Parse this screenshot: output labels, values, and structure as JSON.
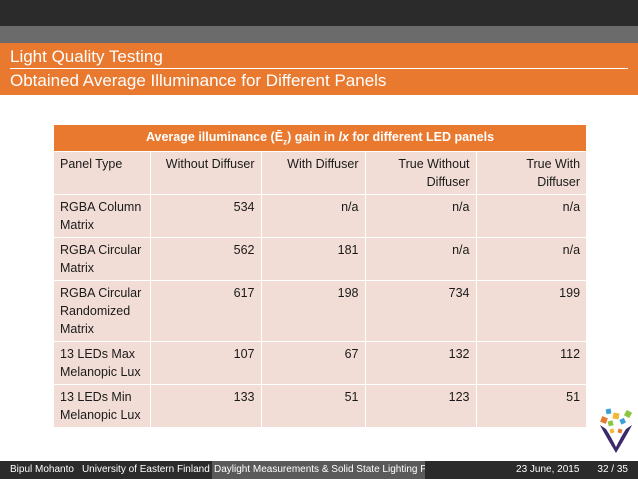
{
  "header": {
    "title": "Light Quality Testing",
    "subtitle": "Obtained Average Illuminance for Different Panels"
  },
  "table": {
    "caption": "Average illuminance (Ē",
    "caption_sub": "z",
    "caption_mid": ") gain in ",
    "caption_unit": "lx",
    "caption_end": " for different LED panels",
    "columns": [
      "Panel Type",
      "Without Diffuser",
      "With Diffuser",
      "True Without Diffuser",
      "True With Diffuser"
    ],
    "rows": [
      {
        "panel": "RGBA Column Matrix",
        "without_diffuser": "534",
        "with_diffuser": "n/a",
        "true_without_diffuser": "n/a",
        "true_with_diffuser": "n/a"
      },
      {
        "panel": "RGBA Circular Matrix",
        "without_diffuser": "562",
        "with_diffuser": "181",
        "true_without_diffuser": "n/a",
        "true_with_diffuser": "n/a"
      },
      {
        "panel": "RGBA Circular Randomized Matrix",
        "without_diffuser": "617",
        "with_diffuser": "198",
        "true_without_diffuser": "734",
        "true_with_diffuser": "199"
      },
      {
        "panel": "13 LEDs Max Melanopic Lux",
        "without_diffuser": "107",
        "with_diffuser": "67",
        "true_without_diffuser": "132",
        "true_with_diffuser": "112"
      },
      {
        "panel": "13 LEDs Min Melanopic Lux",
        "without_diffuser": "133",
        "with_diffuser": "51",
        "true_without_diffuser": "123",
        "true_with_diffuser": "51"
      }
    ]
  },
  "footer": {
    "author": "Bipul Mohanto",
    "institution": "University of Eastern Finland",
    "talk_title": "Daylight Measurements & Solid State Lighting Panel De",
    "date": "23 June, 2015",
    "page": "32 / 35"
  },
  "logo": {
    "icon": "university-logo-icon"
  },
  "colors": {
    "accent": "#e8792f",
    "table_bg": "#f1ddd5",
    "dark_bar": "#2b2b2b",
    "gray_bar": "#6b6b6b"
  }
}
